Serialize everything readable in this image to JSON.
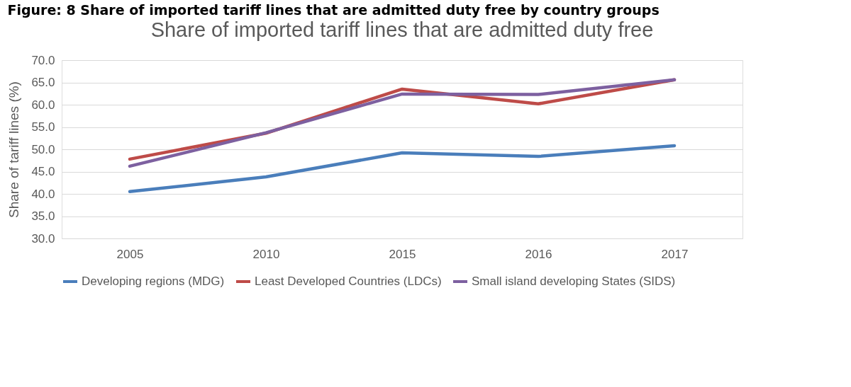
{
  "chart_data": {
    "type": "line",
    "title": "Figure: 8 Share of imported tariff lines that are admitted duty free by country groups",
    "subtitle": "Share of imported tariff lines that are admitted duty free",
    "ylabel": "Share of tariff lines (%)",
    "categories": [
      "2005",
      "2010",
      "2015",
      "2016",
      "2017"
    ],
    "series": [
      {
        "name": "Developing regions (MDG)",
        "color": "#4a7ebb",
        "values": [
          40.5,
          43.8,
          49.2,
          48.4,
          50.8
        ]
      },
      {
        "name": "Least Developed Countries (LDCs)",
        "color": "#be4b48",
        "values": [
          47.8,
          53.6,
          63.5,
          60.2,
          65.6
        ]
      },
      {
        "name": "Small island developing States (SIDS)",
        "color": "#7d60a0",
        "values": [
          46.2,
          53.7,
          62.4,
          62.3,
          65.6
        ]
      }
    ],
    "ylim": [
      30,
      70
    ],
    "yticks": [
      {
        "value": 30,
        "label": "30.0"
      },
      {
        "value": 35,
        "label": "35.0"
      },
      {
        "value": 40,
        "label": "40.0"
      },
      {
        "value": 45,
        "label": "45.0"
      },
      {
        "value": 50,
        "label": "50.0"
      },
      {
        "value": 55,
        "label": "55.0"
      },
      {
        "value": 60,
        "label": "60.0"
      },
      {
        "value": 65,
        "label": "65.0"
      },
      {
        "value": 70,
        "label": "70.0"
      }
    ],
    "grid": "y",
    "legend": "bottom",
    "marker": "none",
    "line_style": "solid"
  }
}
